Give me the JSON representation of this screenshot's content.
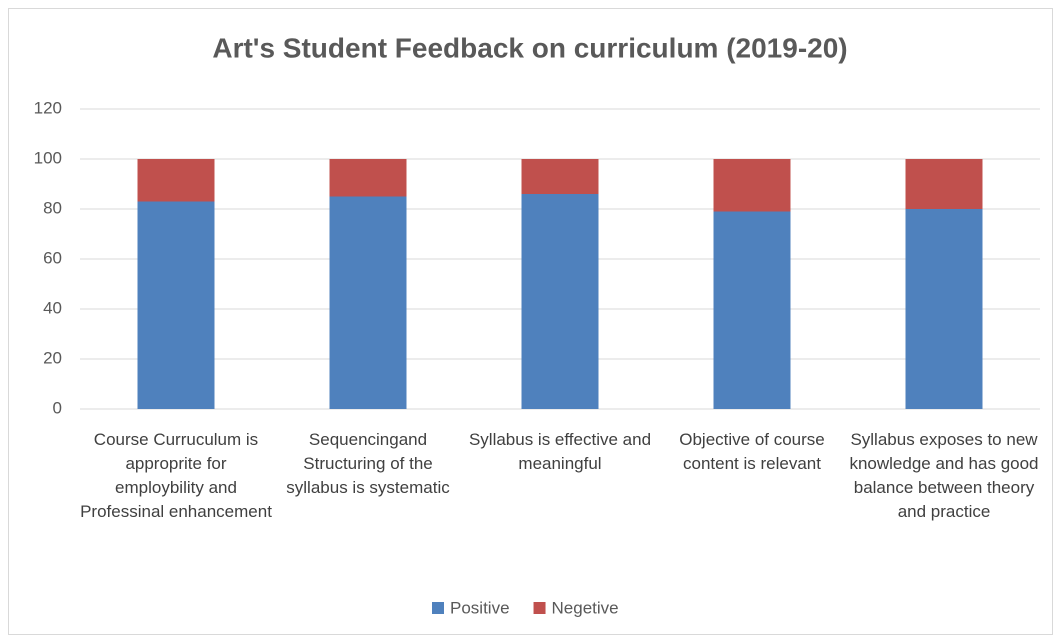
{
  "chart_data": {
    "type": "stacked_bar",
    "title": "Art's Student Feedback on curriculum (2019-20)",
    "categories": [
      "Course Curruculum is approprite for employbility and Professinal enhancement",
      "Sequencingand Structuring of the syllabus is systematic",
      "Syllabus is effective and meaningful",
      "Objective of course content is relevant",
      "Syllabus exposes to new knowledge and has good balance between theory and practice"
    ],
    "series": [
      {
        "name": "Positive",
        "color": "#4f81bd",
        "values": [
          83,
          85,
          86,
          79,
          80
        ]
      },
      {
        "name": "Negetive",
        "color": "#c0504d",
        "values": [
          17,
          15,
          14,
          21,
          20
        ]
      }
    ],
    "ylim": [
      0,
      120
    ],
    "yticks": [
      0,
      20,
      40,
      60,
      80,
      100,
      120
    ],
    "grid": true,
    "legend": "bottom"
  }
}
